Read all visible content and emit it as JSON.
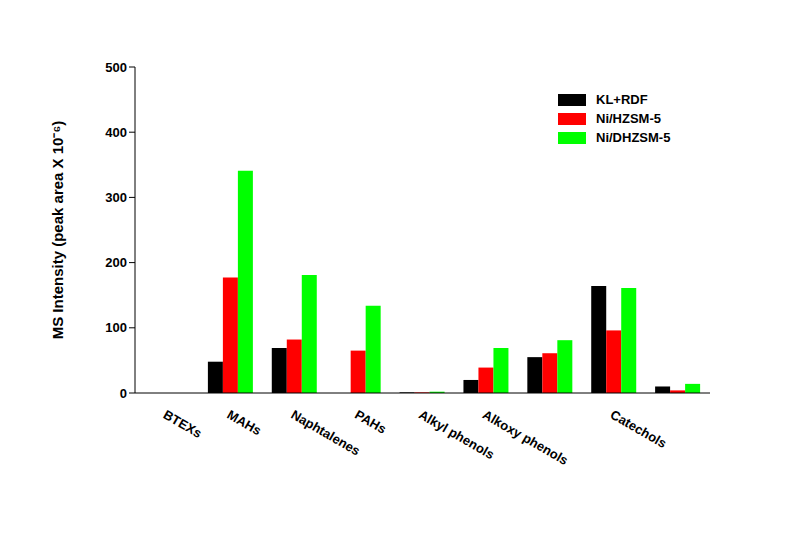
{
  "chart_data": {
    "type": "bar",
    "y_label": "MS Intensity (peak area X 10⁻⁶)",
    "categories": [
      "BTEXs",
      "MAHs",
      "Naphtalenes",
      "PAHs",
      "Alkyl phenols",
      "Alkoxy phenols",
      null,
      "Catechols",
      null
    ],
    "series": [
      {
        "name": "KL+RDF",
        "color": "#000000",
        "values": [
          0,
          48,
          69,
          0,
          1,
          20,
          55,
          164,
          10
        ]
      },
      {
        "name": "Ni/HZSM-5",
        "color": "#ff0000",
        "values": [
          0,
          177,
          82,
          65,
          1,
          39,
          61,
          96,
          4
        ]
      },
      {
        "name": "Ni/DHZSM-5",
        "color": "#00ff00",
        "values": [
          0,
          341,
          181,
          134,
          2,
          69,
          81,
          161,
          14
        ]
      }
    ],
    "ylim": [
      0,
      500
    ],
    "yticks": [
      0,
      100,
      200,
      300,
      400,
      500
    ],
    "legend": "upper right",
    "grid": false
  }
}
